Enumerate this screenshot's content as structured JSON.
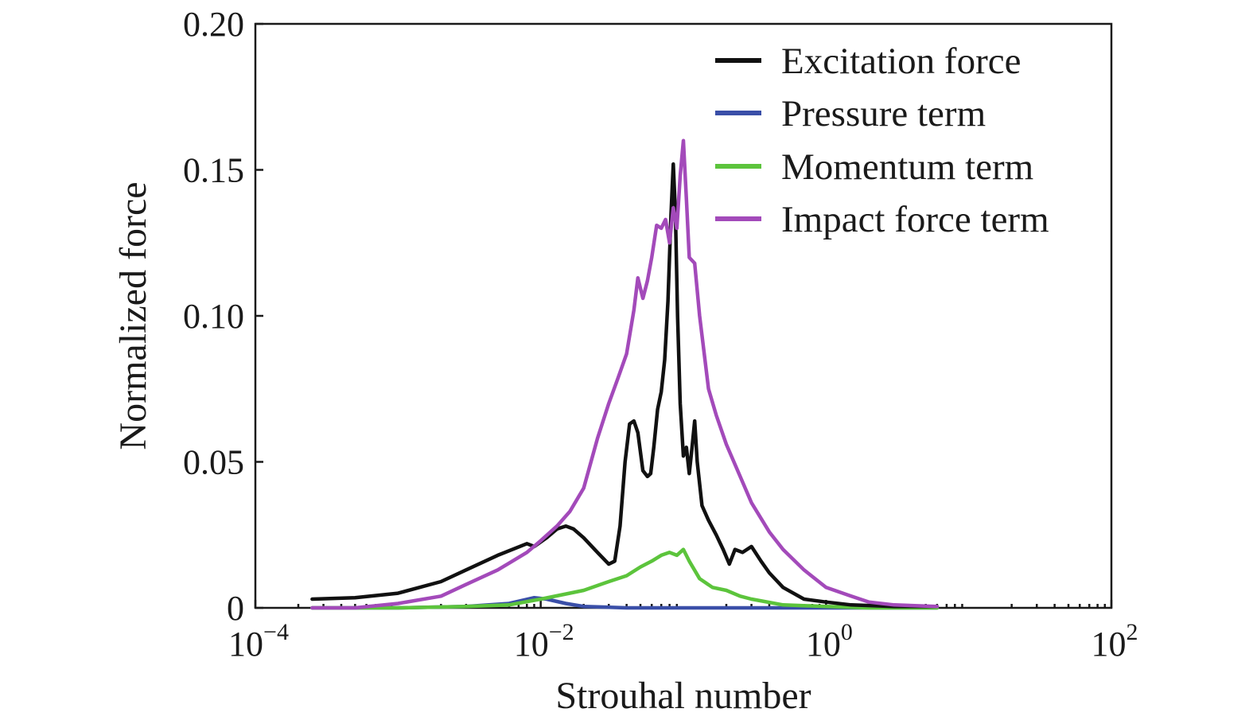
{
  "chart_data": {
    "type": "line",
    "xlabel": "Strouhal number",
    "ylabel": "Normalized force",
    "xscale": "log",
    "xlim": [
      0.0001,
      100
    ],
    "ylim": [
      0,
      0.2
    ],
    "xticks": [
      {
        "value": 0.0001,
        "base": "10",
        "exp": "−4"
      },
      {
        "value": 0.01,
        "base": "10",
        "exp": "−2"
      },
      {
        "value": 1,
        "base": "10",
        "exp": "0"
      },
      {
        "value": 100,
        "base": "10",
        "exp": "2"
      }
    ],
    "yticks": [
      {
        "value": 0,
        "label": "0"
      },
      {
        "value": 0.05,
        "label": "0.05"
      },
      {
        "value": 0.1,
        "label": "0.10"
      },
      {
        "value": 0.15,
        "label": "0.15"
      },
      {
        "value": 0.2,
        "label": "0.20"
      }
    ],
    "legend_position": "top-right",
    "grid": false,
    "series": [
      {
        "name": "Excitation force",
        "color": "#111111",
        "points": [
          [
            0.00025,
            0.003
          ],
          [
            0.0005,
            0.0035
          ],
          [
            0.001,
            0.005
          ],
          [
            0.002,
            0.009
          ],
          [
            0.003,
            0.013
          ],
          [
            0.005,
            0.018
          ],
          [
            0.008,
            0.022
          ],
          [
            0.009,
            0.021
          ],
          [
            0.011,
            0.024
          ],
          [
            0.013,
            0.027
          ],
          [
            0.015,
            0.028
          ],
          [
            0.017,
            0.027
          ],
          [
            0.02,
            0.024
          ],
          [
            0.025,
            0.019
          ],
          [
            0.03,
            0.015
          ],
          [
            0.033,
            0.016
          ],
          [
            0.036,
            0.028
          ],
          [
            0.039,
            0.05
          ],
          [
            0.042,
            0.063
          ],
          [
            0.045,
            0.064
          ],
          [
            0.048,
            0.06
          ],
          [
            0.052,
            0.047
          ],
          [
            0.056,
            0.045
          ],
          [
            0.059,
            0.046
          ],
          [
            0.062,
            0.055
          ],
          [
            0.066,
            0.068
          ],
          [
            0.07,
            0.074
          ],
          [
            0.074,
            0.085
          ],
          [
            0.078,
            0.105
          ],
          [
            0.082,
            0.135
          ],
          [
            0.085,
            0.152
          ],
          [
            0.088,
            0.135
          ],
          [
            0.091,
            0.1
          ],
          [
            0.095,
            0.07
          ],
          [
            0.1,
            0.052
          ],
          [
            0.105,
            0.055
          ],
          [
            0.11,
            0.046
          ],
          [
            0.115,
            0.055
          ],
          [
            0.12,
            0.064
          ],
          [
            0.125,
            0.05
          ],
          [
            0.135,
            0.035
          ],
          [
            0.15,
            0.03
          ],
          [
            0.17,
            0.025
          ],
          [
            0.19,
            0.02
          ],
          [
            0.21,
            0.015
          ],
          [
            0.23,
            0.02
          ],
          [
            0.26,
            0.019
          ],
          [
            0.3,
            0.021
          ],
          [
            0.35,
            0.016
          ],
          [
            0.4,
            0.012
          ],
          [
            0.5,
            0.007
          ],
          [
            0.7,
            0.003
          ],
          [
            1.0,
            0.002
          ],
          [
            1.5,
            0.001
          ],
          [
            3.0,
            0.0005
          ],
          [
            6.0,
            0.0005
          ]
        ]
      },
      {
        "name": "Pressure term",
        "color": "#3a4fa8",
        "points": [
          [
            0.00025,
            0.0
          ],
          [
            0.001,
            0.0
          ],
          [
            0.003,
            0.0005
          ],
          [
            0.006,
            0.0015
          ],
          [
            0.009,
            0.0035
          ],
          [
            0.011,
            0.003
          ],
          [
            0.015,
            0.0015
          ],
          [
            0.02,
            0.0005
          ],
          [
            0.04,
            0.0
          ],
          [
            0.1,
            0.0
          ],
          [
            1.0,
            0.0
          ],
          [
            6.0,
            0.0
          ]
        ]
      },
      {
        "name": "Momentum term",
        "color": "#5cc43c",
        "points": [
          [
            0.00025,
            0.0
          ],
          [
            0.001,
            0.0
          ],
          [
            0.003,
            0.0005
          ],
          [
            0.006,
            0.001
          ],
          [
            0.01,
            0.003
          ],
          [
            0.02,
            0.006
          ],
          [
            0.03,
            0.009
          ],
          [
            0.04,
            0.011
          ],
          [
            0.05,
            0.014
          ],
          [
            0.06,
            0.016
          ],
          [
            0.07,
            0.018
          ],
          [
            0.08,
            0.019
          ],
          [
            0.09,
            0.018
          ],
          [
            0.1,
            0.02
          ],
          [
            0.11,
            0.016
          ],
          [
            0.13,
            0.01
          ],
          [
            0.16,
            0.007
          ],
          [
            0.2,
            0.006
          ],
          [
            0.25,
            0.004
          ],
          [
            0.3,
            0.003
          ],
          [
            0.5,
            0.001
          ],
          [
            1.0,
            0.0005
          ],
          [
            2.0,
            0.0
          ],
          [
            6.0,
            0.0
          ]
        ]
      },
      {
        "name": "Impact force term",
        "color": "#a34aba",
        "points": [
          [
            0.00025,
            0.0
          ],
          [
            0.0005,
            0.0
          ],
          [
            0.001,
            0.0015
          ],
          [
            0.002,
            0.004
          ],
          [
            0.003,
            0.008
          ],
          [
            0.005,
            0.013
          ],
          [
            0.008,
            0.019
          ],
          [
            0.01,
            0.023
          ],
          [
            0.013,
            0.028
          ],
          [
            0.016,
            0.033
          ],
          [
            0.02,
            0.041
          ],
          [
            0.025,
            0.058
          ],
          [
            0.03,
            0.07
          ],
          [
            0.035,
            0.079
          ],
          [
            0.04,
            0.087
          ],
          [
            0.045,
            0.102
          ],
          [
            0.048,
            0.113
          ],
          [
            0.052,
            0.106
          ],
          [
            0.056,
            0.112
          ],
          [
            0.06,
            0.12
          ],
          [
            0.065,
            0.131
          ],
          [
            0.07,
            0.13
          ],
          [
            0.075,
            0.133
          ],
          [
            0.08,
            0.125
          ],
          [
            0.085,
            0.137
          ],
          [
            0.09,
            0.13
          ],
          [
            0.095,
            0.148
          ],
          [
            0.1,
            0.16
          ],
          [
            0.105,
            0.14
          ],
          [
            0.11,
            0.12
          ],
          [
            0.12,
            0.118
          ],
          [
            0.13,
            0.1
          ],
          [
            0.15,
            0.075
          ],
          [
            0.17,
            0.066
          ],
          [
            0.2,
            0.056
          ],
          [
            0.25,
            0.045
          ],
          [
            0.3,
            0.036
          ],
          [
            0.4,
            0.026
          ],
          [
            0.5,
            0.02
          ],
          [
            0.7,
            0.013
          ],
          [
            1.0,
            0.007
          ],
          [
            1.5,
            0.004
          ],
          [
            2.0,
            0.002
          ],
          [
            3.0,
            0.001
          ],
          [
            6.0,
            0.0005
          ]
        ]
      }
    ]
  }
}
